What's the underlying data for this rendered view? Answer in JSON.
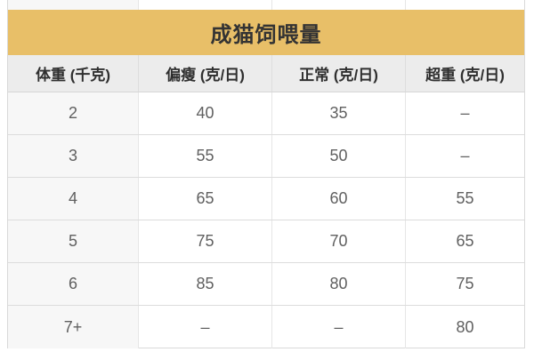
{
  "chart_data": {
    "type": "table",
    "title": "成猫饲喂量",
    "columns": [
      "体重 (千克)",
      "偏瘦 (克/日)",
      "正常 (克/日)",
      "超重 (克/日)"
    ],
    "rows": [
      [
        "2",
        "40",
        "35",
        "–"
      ],
      [
        "3",
        "55",
        "50",
        "–"
      ],
      [
        "4",
        "65",
        "60",
        "55"
      ],
      [
        "5",
        "75",
        "70",
        "65"
      ],
      [
        "6",
        "85",
        "80",
        "75"
      ],
      [
        "7+",
        "–",
        "–",
        "80"
      ]
    ]
  },
  "colors": {
    "accent_gold": "#e8bf68",
    "header_row_bg": "#ececec",
    "first_column_bg": "#f7f7f7",
    "border": "#dcdcdc",
    "title_text": "#333333",
    "cell_text": "#606060"
  }
}
